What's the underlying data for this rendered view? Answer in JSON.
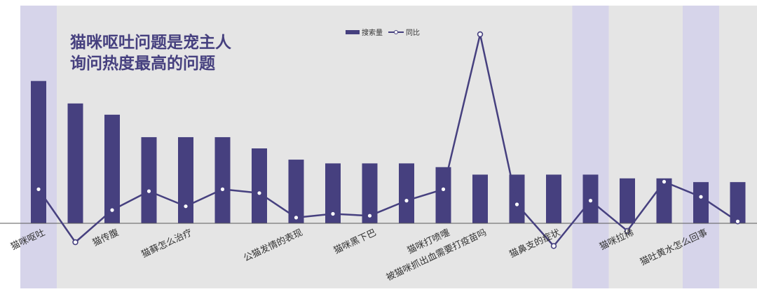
{
  "title": "猫咪呕吐问题是宠主人\n询问热度最高的问题",
  "colors": {
    "background": "#e5e5e5",
    "highlight": "#d6d4ea",
    "bar": "#46407f",
    "line": "#46407f",
    "marker_fill": "#ffffff",
    "axis": "#5a5a5a",
    "title": "#46407f"
  },
  "chart_data": {
    "type": "bar",
    "categories": [
      "猫咪呕吐",
      "猫传腹",
      "猫藓怎么治疗",
      "公猫发情的表现",
      "猫咪黑下巴",
      "猫咪打喷嚏",
      "被猫咪抓出血需要打疫苗吗",
      "猫鼻支的症状",
      "猫咪拉稀",
      "猫吐黄水怎么回事"
    ],
    "bars": {
      "labels": [
        "猫咪呕吐",
        "",
        "猫传腹",
        "",
        "猫藓怎么治疗",
        "",
        "",
        "公猫发情的表现",
        "",
        "猫咪黑下巴",
        "",
        "猫咪打喷嚏",
        "被猫咪抓出血需要打疫苗吗",
        "",
        "猫鼻支的症状",
        "",
        "猫咪拉稀",
        "",
        "猫吐黄水怎么回事",
        ""
      ],
      "search_volume": [
        38,
        32,
        29,
        23,
        23,
        23,
        20,
        17,
        16,
        16,
        16,
        15,
        13,
        13,
        13,
        13,
        12,
        12,
        11,
        11
      ],
      "yoy": [
        9,
        -5,
        3.5,
        8.5,
        4.5,
        9,
        8,
        1.5,
        2.5,
        2,
        6,
        9,
        50,
        5,
        -6,
        6,
        -2,
        11,
        7,
        0.5
      ]
    },
    "series": [
      {
        "name": "搜索量",
        "type": "bar"
      },
      {
        "name": "同比",
        "type": "line"
      }
    ],
    "highlight_bands": [
      0,
      15,
      18
    ],
    "legend_position": "top-center",
    "grid": false
  }
}
